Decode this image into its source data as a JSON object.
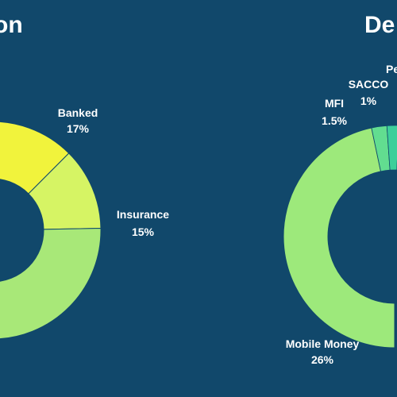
{
  "chart_data": [
    {
      "type": "pie",
      "title": "on",
      "categories": [
        "Banked",
        "Insurance",
        "(unlabeled)"
      ],
      "values": [
        17,
        15,
        31
      ],
      "colors": [
        "#f1f33c",
        "#d6f464",
        "#a8e878"
      ],
      "labels": [
        {
          "name": "Banked",
          "value": "17%"
        },
        {
          "name": "Insurance",
          "value": "15%"
        }
      ]
    },
    {
      "type": "pie",
      "title": "De",
      "categories": [
        "Mobile Money",
        "MFI",
        "SACCO",
        "Pe"
      ],
      "values": [
        26,
        1.5,
        1,
        1
      ],
      "colors": [
        "#9de97b",
        "#62dd90",
        "#3ccf9a",
        "#21c0a0"
      ],
      "labels": [
        {
          "name": "Mobile Money",
          "value": "26%"
        },
        {
          "name": "MFI",
          "value": "1.5%"
        },
        {
          "name": "SACCO",
          "value": "1%"
        },
        {
          "name": "Pe",
          "value": ""
        }
      ]
    }
  ]
}
